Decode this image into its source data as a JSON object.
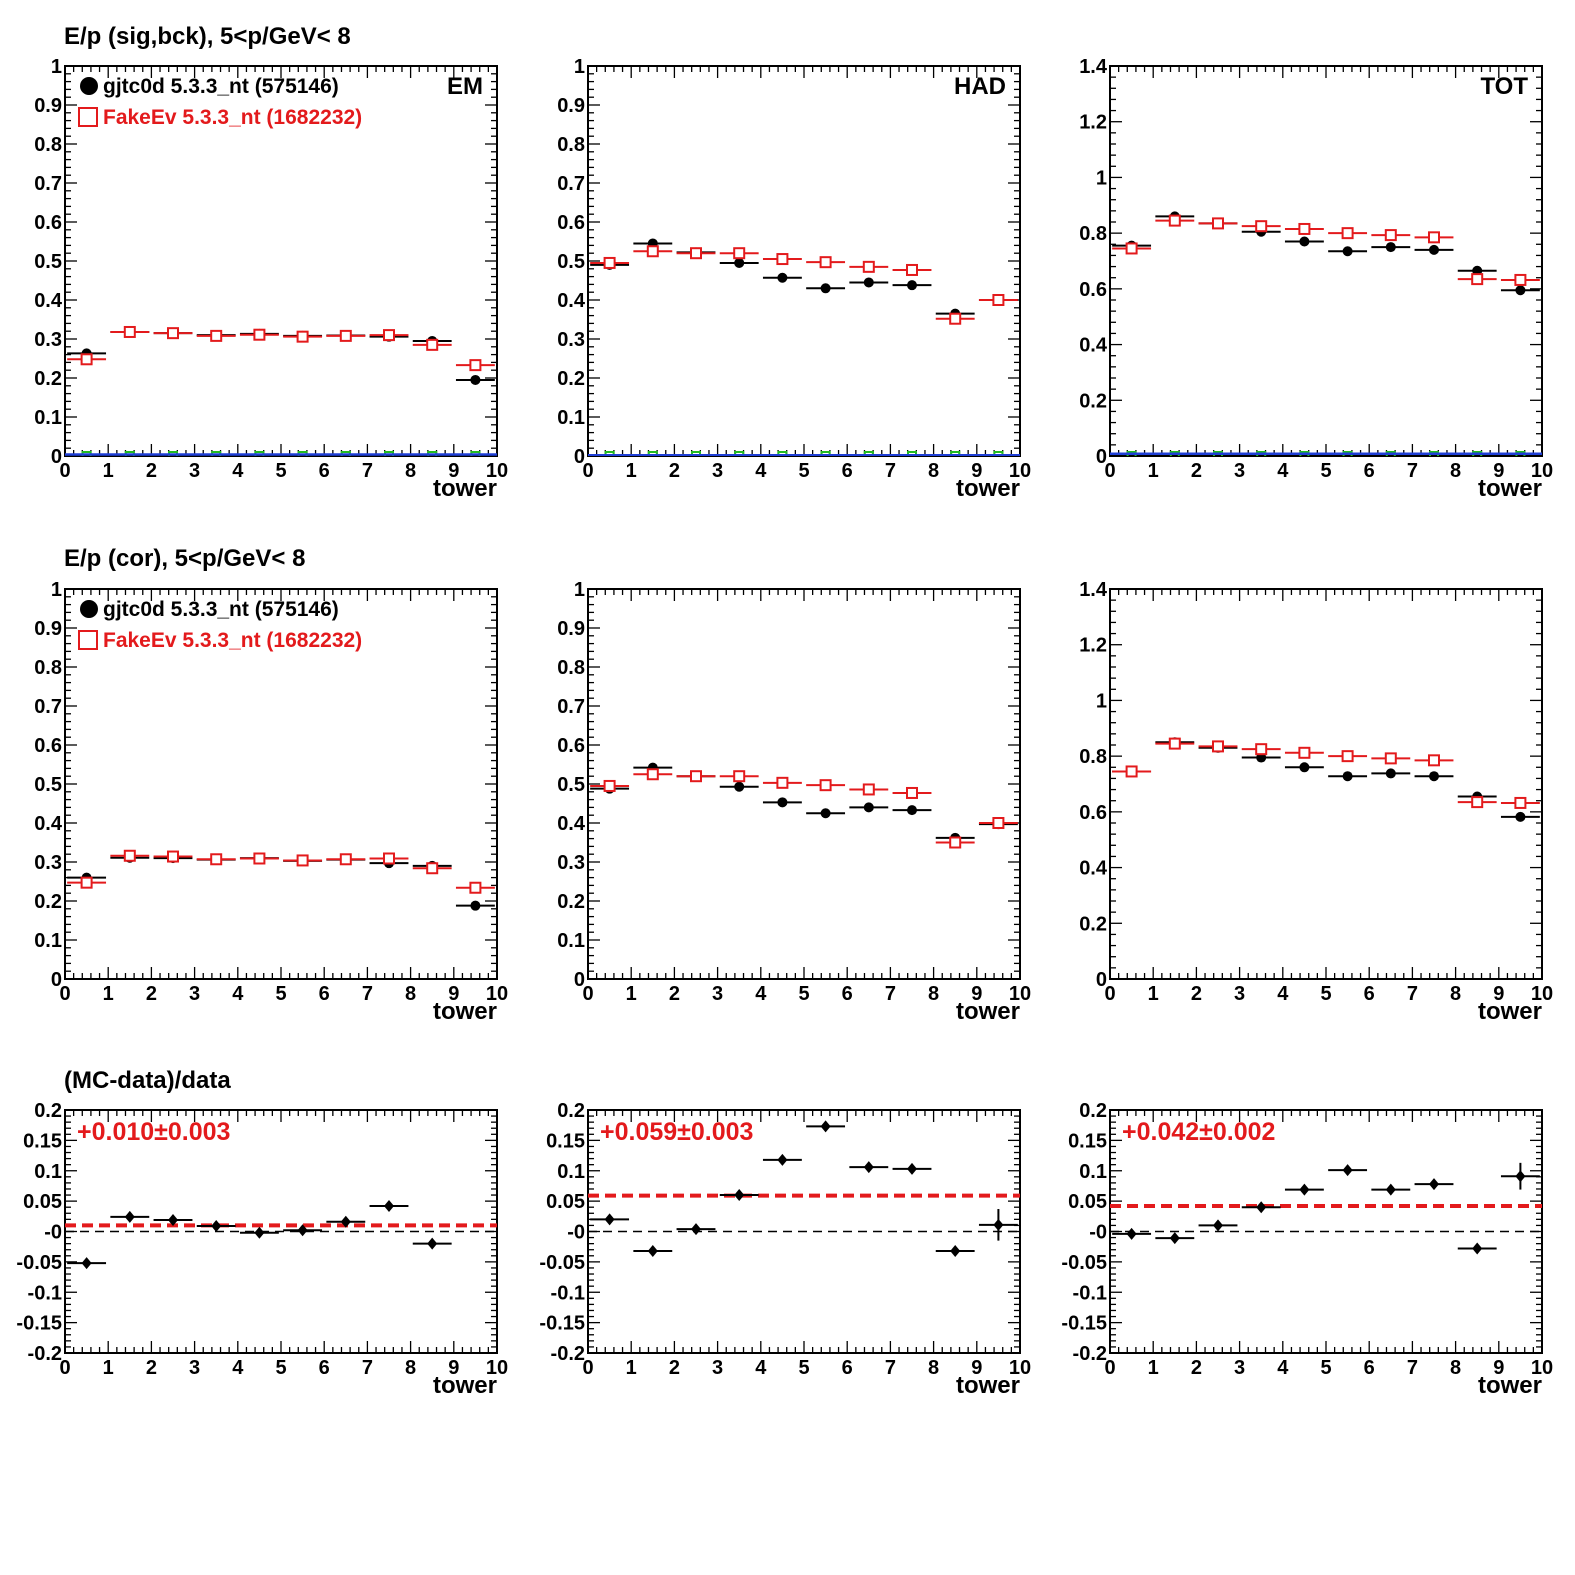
{
  "colors": {
    "data": "#000000",
    "mc": "#e31a1c",
    "green": "#22bb22",
    "blue": "#1f3fd6",
    "fit": "#e31a1c"
  },
  "rows": [
    {
      "title": "E/p (sig,bck),  5<p/GeV< 8"
    },
    {
      "title": "E/p (cor),  5<p/GeV< 8"
    },
    {
      "title": "(MC-data)/data"
    }
  ],
  "legend": {
    "data": "gjtc0d 5.3.3_nt (575146)",
    "mc": "FakeEv 5.3.3_nt (1682232)"
  },
  "xlabel": "tower",
  "chart_data": [
    {
      "type": "scatter",
      "panel": "row1-col1",
      "label": "EM",
      "xlim": [
        0,
        10
      ],
      "ylim": [
        0,
        1
      ],
      "yticks": [
        0,
        0.1,
        0.2,
        0.3,
        0.4,
        0.5,
        0.6,
        0.7,
        0.8,
        0.9,
        1
      ],
      "ytick_labels": [
        "0",
        "0.1",
        "0.2",
        "0.3",
        "0.4",
        "0.5",
        "0.6",
        "0.7",
        "0.8",
        "0.9",
        "1"
      ],
      "legend": true,
      "grid": false,
      "series": [
        {
          "key": "data",
          "marker": "filled-circle",
          "x": [
            0.5,
            1.5,
            2.5,
            3.5,
            4.5,
            5.5,
            6.5,
            7.5,
            8.5,
            9.5
          ],
          "y": [
            0.263,
            0.318,
            0.315,
            0.31,
            0.313,
            0.308,
            0.309,
            0.306,
            0.295,
            0.195
          ]
        },
        {
          "key": "mc",
          "marker": "open-square",
          "x": [
            0.5,
            1.5,
            2.5,
            3.5,
            4.5,
            5.5,
            6.5,
            7.5,
            8.5,
            9.5
          ],
          "y": [
            0.248,
            0.318,
            0.315,
            0.308,
            0.311,
            0.306,
            0.308,
            0.31,
            0.285,
            0.233
          ]
        },
        {
          "key": "green",
          "marker": "open-square-small",
          "x": [
            0.5,
            1.5,
            2.5,
            3.5,
            4.5,
            5.5,
            6.5,
            7.5,
            8.5,
            9.5
          ],
          "y": [
            0,
            0,
            0,
            0,
            0,
            0,
            0,
            0,
            0,
            0
          ]
        },
        {
          "key": "blue",
          "marker": "line",
          "x": [
            0,
            10
          ],
          "y": [
            0.004,
            0.004
          ]
        }
      ]
    },
    {
      "type": "scatter",
      "panel": "row1-col2",
      "label": "HAD",
      "xlim": [
        0,
        10
      ],
      "ylim": [
        0,
        1
      ],
      "yticks": [
        0,
        0.1,
        0.2,
        0.3,
        0.4,
        0.5,
        0.6,
        0.7,
        0.8,
        0.9,
        1
      ],
      "ytick_labels": [
        "0",
        "0.1",
        "0.2",
        "0.3",
        "0.4",
        "0.5",
        "0.6",
        "0.7",
        "0.8",
        "0.9",
        "1"
      ],
      "grid": false,
      "series": [
        {
          "key": "data",
          "marker": "filled-circle",
          "x": [
            0.5,
            1.5,
            2.5,
            3.5,
            4.5,
            5.5,
            6.5,
            7.5,
            8.5,
            9.5
          ],
          "y": [
            0.49,
            0.545,
            0.522,
            0.495,
            0.457,
            0.43,
            0.445,
            0.438,
            0.365,
            0.4
          ]
        },
        {
          "key": "mc",
          "marker": "open-square",
          "x": [
            0.5,
            1.5,
            2.5,
            3.5,
            4.5,
            5.5,
            6.5,
            7.5,
            8.5,
            9.5
          ],
          "y": [
            0.495,
            0.525,
            0.52,
            0.52,
            0.505,
            0.497,
            0.485,
            0.477,
            0.352,
            0.4
          ]
        },
        {
          "key": "green",
          "marker": "open-square-small",
          "x": [
            0.5,
            1.5,
            2.5,
            3.5,
            4.5,
            5.5,
            6.5,
            7.5,
            8.5,
            9.5
          ],
          "y": [
            0,
            0,
            0,
            0,
            0,
            0,
            0,
            0,
            0,
            0
          ]
        },
        {
          "key": "blue",
          "marker": "line",
          "x": [
            0,
            10
          ],
          "y": [
            0.002,
            0.002
          ]
        }
      ]
    },
    {
      "type": "scatter",
      "panel": "row1-col3",
      "label": "TOT",
      "xlim": [
        0,
        10
      ],
      "ylim": [
        0,
        1.4
      ],
      "yticks": [
        0,
        0.2,
        0.4,
        0.6,
        0.8,
        1,
        1.2,
        1.4
      ],
      "ytick_labels": [
        "0",
        "0.2",
        "0.4",
        "0.6",
        "0.8",
        "1",
        "1.2",
        "1.4"
      ],
      "grid": false,
      "series": [
        {
          "key": "data",
          "marker": "filled-circle",
          "x": [
            0.5,
            1.5,
            2.5,
            3.5,
            4.5,
            5.5,
            6.5,
            7.5,
            8.5,
            9.5
          ],
          "y": [
            0.755,
            0.86,
            0.835,
            0.805,
            0.77,
            0.735,
            0.75,
            0.74,
            0.665,
            0.595
          ]
        },
        {
          "key": "mc",
          "marker": "open-square",
          "x": [
            0.5,
            1.5,
            2.5,
            3.5,
            4.5,
            5.5,
            6.5,
            7.5,
            8.5,
            9.5
          ],
          "y": [
            0.745,
            0.845,
            0.835,
            0.825,
            0.815,
            0.8,
            0.793,
            0.785,
            0.635,
            0.632
          ]
        },
        {
          "key": "green",
          "marker": "open-square-small",
          "x": [
            0.5,
            1.5,
            2.5,
            3.5,
            4.5,
            5.5,
            6.5,
            7.5,
            8.5,
            9.5
          ],
          "y": [
            0,
            0,
            0,
            0,
            0,
            0,
            0,
            0,
            0,
            0
          ]
        },
        {
          "key": "blue",
          "marker": "line",
          "x": [
            0,
            10
          ],
          "y": [
            0.008,
            0.008
          ]
        }
      ]
    },
    {
      "type": "scatter",
      "panel": "row2-col1",
      "xlim": [
        0,
        10
      ],
      "ylim": [
        0,
        1
      ],
      "yticks": [
        0,
        0.1,
        0.2,
        0.3,
        0.4,
        0.5,
        0.6,
        0.7,
        0.8,
        0.9,
        1
      ],
      "ytick_labels": [
        "0",
        "0.1",
        "0.2",
        "0.3",
        "0.4",
        "0.5",
        "0.6",
        "0.7",
        "0.8",
        "0.9",
        "1"
      ],
      "legend": true,
      "grid": false,
      "series": [
        {
          "key": "data",
          "marker": "filled-circle",
          "x": [
            0.5,
            1.5,
            2.5,
            3.5,
            4.5,
            5.5,
            6.5,
            7.5,
            8.5,
            9.5
          ],
          "y": [
            0.26,
            0.311,
            0.31,
            0.306,
            0.31,
            0.303,
            0.306,
            0.297,
            0.29,
            0.188
          ]
        },
        {
          "key": "mc",
          "marker": "open-square",
          "x": [
            0.5,
            1.5,
            2.5,
            3.5,
            4.5,
            5.5,
            6.5,
            7.5,
            8.5,
            9.5
          ],
          "y": [
            0.247,
            0.316,
            0.314,
            0.307,
            0.309,
            0.304,
            0.307,
            0.309,
            0.284,
            0.234
          ]
        }
      ]
    },
    {
      "type": "scatter",
      "panel": "row2-col2",
      "xlim": [
        0,
        10
      ],
      "ylim": [
        0,
        1
      ],
      "yticks": [
        0,
        0.1,
        0.2,
        0.3,
        0.4,
        0.5,
        0.6,
        0.7,
        0.8,
        0.9,
        1
      ],
      "ytick_labels": [
        "0",
        "0.1",
        "0.2",
        "0.3",
        "0.4",
        "0.5",
        "0.6",
        "0.7",
        "0.8",
        "0.9",
        "1"
      ],
      "grid": false,
      "series": [
        {
          "key": "data",
          "marker": "filled-circle",
          "x": [
            0.5,
            1.5,
            2.5,
            3.5,
            4.5,
            5.5,
            6.5,
            7.5,
            8.5,
            9.5
          ],
          "y": [
            0.488,
            0.542,
            0.52,
            0.493,
            0.453,
            0.425,
            0.44,
            0.433,
            0.362,
            0.397
          ]
        },
        {
          "key": "mc",
          "marker": "open-square",
          "x": [
            0.5,
            1.5,
            2.5,
            3.5,
            4.5,
            5.5,
            6.5,
            7.5,
            8.5,
            9.5
          ],
          "y": [
            0.495,
            0.525,
            0.52,
            0.52,
            0.503,
            0.497,
            0.486,
            0.477,
            0.35,
            0.4
          ]
        }
      ]
    },
    {
      "type": "scatter",
      "panel": "row2-col3",
      "xlim": [
        0,
        10
      ],
      "ylim": [
        0,
        1.4
      ],
      "yticks": [
        0,
        0.2,
        0.4,
        0.6,
        0.8,
        1,
        1.2,
        1.4
      ],
      "ytick_labels": [
        "0",
        "0.2",
        "0.4",
        "0.6",
        "0.8",
        "1",
        "1.2",
        "1.4"
      ],
      "grid": false,
      "series": [
        {
          "key": "data",
          "marker": "filled-circle",
          "x": [
            0.5,
            1.5,
            2.5,
            3.5,
            4.5,
            5.5,
            6.5,
            7.5,
            8.5,
            9.5
          ],
          "y": [
            0.745,
            0.85,
            0.83,
            0.795,
            0.76,
            0.728,
            0.738,
            0.728,
            0.655,
            0.582
          ]
        },
        {
          "key": "mc",
          "marker": "open-square",
          "x": [
            0.5,
            1.5,
            2.5,
            3.5,
            4.5,
            5.5,
            6.5,
            7.5,
            8.5,
            9.5
          ],
          "y": [
            0.745,
            0.845,
            0.835,
            0.825,
            0.812,
            0.8,
            0.792,
            0.785,
            0.635,
            0.632
          ]
        }
      ]
    },
    {
      "type": "scatter",
      "panel": "row3-col1",
      "xlim": [
        0,
        10
      ],
      "ylim": [
        -0.2,
        0.2
      ],
      "yticks": [
        -0.2,
        -0.15,
        -0.1,
        -0.05,
        0,
        0.05,
        0.1,
        0.15,
        0.2
      ],
      "ytick_labels": [
        "-0.2",
        "-0.15",
        "-0.1",
        "-0.05",
        "-0",
        "0.05",
        "0.1",
        "0.15",
        "0.2"
      ],
      "fit_text": "+0.010±0.003",
      "fit_value": 0.01,
      "zero_line": true,
      "grid": false,
      "series": [
        {
          "key": "data",
          "marker": "filled-diamond",
          "x": [
            0.5,
            1.5,
            2.5,
            3.5,
            4.5,
            5.5,
            6.5,
            7.5,
            8.5
          ],
          "y": [
            -0.052,
            0.024,
            0.019,
            0.009,
            -0.002,
            0.002,
            0.016,
            0.042,
            -0.02
          ],
          "yerr": [
            0.003,
            0.003,
            0.003,
            0.003,
            0.003,
            0.003,
            0.003,
            0.003,
            0.003
          ]
        }
      ]
    },
    {
      "type": "scatter",
      "panel": "row3-col2",
      "xlim": [
        0,
        10
      ],
      "ylim": [
        -0.2,
        0.2
      ],
      "yticks": [
        -0.2,
        -0.15,
        -0.1,
        -0.05,
        0,
        0.05,
        0.1,
        0.15,
        0.2
      ],
      "ytick_labels": [
        "-0.2",
        "-0.15",
        "-0.1",
        "-0.05",
        "-0",
        "0.05",
        "0.1",
        "0.15",
        "0.2"
      ],
      "fit_text": "+0.059±0.003",
      "fit_value": 0.059,
      "zero_line": true,
      "grid": false,
      "series": [
        {
          "key": "data",
          "marker": "filled-diamond",
          "x": [
            0.5,
            1.5,
            2.5,
            3.5,
            4.5,
            5.5,
            6.5,
            7.5,
            8.5,
            9.5
          ],
          "y": [
            0.02,
            -0.032,
            0.004,
            0.06,
            0.118,
            0.173,
            0.106,
            0.103,
            -0.032,
            0.011
          ],
          "yerr": [
            0.003,
            0.003,
            0.003,
            0.003,
            0.003,
            0.004,
            0.003,
            0.003,
            0.003,
            0.026
          ]
        }
      ]
    },
    {
      "type": "scatter",
      "panel": "row3-col3",
      "xlim": [
        0,
        10
      ],
      "ylim": [
        -0.2,
        0.2
      ],
      "yticks": [
        -0.2,
        -0.15,
        -0.1,
        -0.05,
        0,
        0.05,
        0.1,
        0.15,
        0.2
      ],
      "ytick_labels": [
        "-0.2",
        "-0.15",
        "-0.1",
        "-0.05",
        "-0",
        "0.05",
        "0.1",
        "0.15",
        "0.2"
      ],
      "fit_text": "+0.042±0.002",
      "fit_value": 0.042,
      "zero_line": true,
      "grid": false,
      "series": [
        {
          "key": "data",
          "marker": "filled-diamond",
          "x": [
            0.5,
            1.5,
            2.5,
            3.5,
            4.5,
            5.5,
            6.5,
            7.5,
            8.5,
            9.5
          ],
          "y": [
            -0.004,
            -0.011,
            0.01,
            0.04,
            0.069,
            0.101,
            0.069,
            0.078,
            -0.028,
            0.091
          ],
          "yerr": [
            0.002,
            0.002,
            0.002,
            0.002,
            0.002,
            0.002,
            0.002,
            0.002,
            0.003,
            0.022
          ]
        }
      ]
    }
  ],
  "xticks": [
    0,
    1,
    2,
    3,
    4,
    5,
    6,
    7,
    8,
    9,
    10
  ],
  "xtick_labels": [
    "0",
    "1",
    "2",
    "3",
    "4",
    "5",
    "6",
    "7",
    "8",
    "9",
    "10"
  ]
}
